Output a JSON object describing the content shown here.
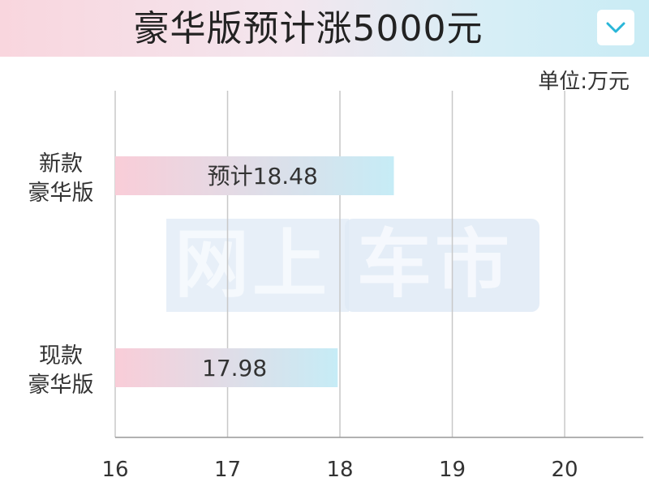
{
  "header": {
    "title": "豪华版预计涨5000元"
  },
  "unit_label": "单位:万元",
  "watermark": {
    "left": "网上",
    "right": "车市"
  },
  "colors": {
    "bar_start": "#f9cdd8",
    "bar_end": "#c6ecf6",
    "grid": "#c8c8c8",
    "text": "#333333"
  },
  "chart_data": {
    "type": "bar",
    "orientation": "horizontal",
    "title": "豪华版预计涨5000元",
    "unit": "单位:万元",
    "categories": [
      [
        "新款",
        "豪华版"
      ],
      [
        "现款",
        "豪华版"
      ]
    ],
    "values": [
      18.48,
      17.98
    ],
    "data_labels": [
      "预计18.48",
      "17.98"
    ],
    "xlim": [
      16,
      20.7
    ],
    "xticks": [
      16,
      17,
      18,
      19,
      20
    ],
    "grid": true
  }
}
